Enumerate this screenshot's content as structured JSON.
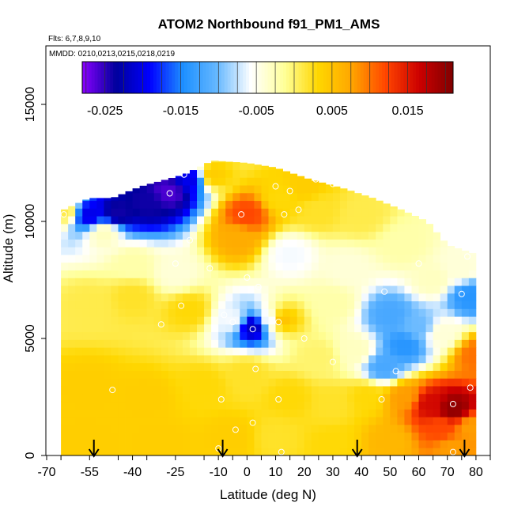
{
  "chart_data": {
    "type": "heatmap",
    "title": "ATOM2 Northbound f91_PM1_AMS",
    "flights_note": "Flts: 6,7,8,9,10",
    "dates_note": "MMDD: 0210,0213,0215,0218,0219",
    "xlabel": "Latitude (deg N)",
    "ylabel": "Altitude (m)",
    "xlim": [
      -70,
      85
    ],
    "ylim": [
      0,
      17500
    ],
    "x_ticks": [
      -70,
      -55,
      -40,
      -25,
      -10,
      0,
      10,
      20,
      30,
      40,
      50,
      60,
      70,
      80
    ],
    "y_ticks": [
      0,
      5000,
      10000,
      15000
    ],
    "colorbar": {
      "range": [
        -0.028,
        0.021
      ],
      "ticks": [
        -0.025,
        -0.015,
        -0.005,
        0.005,
        0.015
      ],
      "tick_labels": [
        "-0.025",
        "-0.015",
        "-0.005",
        "0.005",
        "0.015"
      ],
      "colors": [
        "#8a00ff",
        "#00009c",
        "#0000ff",
        "#1e90ff",
        "#66b8ff",
        "#ffffff",
        "#ffff99",
        "#ffd700",
        "#ffa500",
        "#ff4500",
        "#cc0000",
        "#800000"
      ]
    },
    "arrows_latitude": [
      -53.5,
      -8.5,
      38.5,
      76
    ],
    "column_tops_m": [
      [
        -64,
        10500
      ],
      [
        -55,
        11000
      ],
      [
        -47,
        11000
      ],
      [
        -37,
        11500
      ],
      [
        -22,
        12000
      ],
      [
        -12,
        12600
      ],
      [
        0,
        12500
      ],
      [
        10,
        12300
      ],
      [
        22,
        11800
      ],
      [
        34,
        11400
      ],
      [
        44,
        11000
      ],
      [
        54,
        10500
      ],
      [
        63,
        10000
      ],
      [
        70,
        9000
      ],
      [
        80,
        8600
      ]
    ],
    "field": [
      {
        "lat": -64,
        "alt": 10500,
        "value": 0.001
      },
      {
        "lat": -55,
        "alt": 10300,
        "value": -0.02
      },
      {
        "lat": -45,
        "alt": 10400,
        "value": -0.024
      },
      {
        "lat": -35,
        "alt": 10800,
        "value": -0.024
      },
      {
        "lat": -27,
        "alt": 11300,
        "value": -0.026
      },
      {
        "lat": -20,
        "alt": 11800,
        "value": -0.02
      },
      {
        "lat": -12,
        "alt": 12000,
        "value": 0.004
      },
      {
        "lat": 0,
        "alt": 10300,
        "value": 0.012
      },
      {
        "lat": -3,
        "alt": 9300,
        "value": 0.007
      },
      {
        "lat": 12,
        "alt": 11000,
        "value": 0.003
      },
      {
        "lat": 20,
        "alt": 11500,
        "value": 0.004
      },
      {
        "lat": 25,
        "alt": 10500,
        "value": 0.002
      },
      {
        "lat": 40,
        "alt": 10300,
        "value": 0.001
      },
      {
        "lat": -50,
        "alt": 9500,
        "value": -0.003
      },
      {
        "lat": -40,
        "alt": 8200,
        "value": -0.002
      },
      {
        "lat": -25,
        "alt": 7800,
        "value": -0.004
      },
      {
        "lat": 15,
        "alt": 8600,
        "value": -0.006
      },
      {
        "lat": 35,
        "alt": 8000,
        "value": -0.004
      },
      {
        "lat": 55,
        "alt": 9000,
        "value": -0.002
      },
      {
        "lat": 65,
        "alt": 7500,
        "value": -0.003
      },
      {
        "lat": 75,
        "alt": 8000,
        "value": -0.004
      },
      {
        "lat": 78,
        "alt": 6800,
        "value": -0.014
      },
      {
        "lat": -55,
        "alt": 6500,
        "value": 0.001
      },
      {
        "lat": -40,
        "alt": 6800,
        "value": 0.002
      },
      {
        "lat": -20,
        "alt": 6200,
        "value": 0.003
      },
      {
        "lat": 2,
        "alt": 5500,
        "value": -0.022
      },
      {
        "lat": -5,
        "alt": 5800,
        "value": -0.006
      },
      {
        "lat": 8,
        "alt": 5800,
        "value": -0.006
      },
      {
        "lat": 12,
        "alt": 5800,
        "value": 0.005
      },
      {
        "lat": 30,
        "alt": 6500,
        "value": -0.002
      },
      {
        "lat": 50,
        "alt": 6000,
        "value": -0.012
      },
      {
        "lat": 55,
        "alt": 4700,
        "value": -0.014
      },
      {
        "lat": 48,
        "alt": 3800,
        "value": -0.012
      },
      {
        "lat": 60,
        "alt": 5500,
        "value": -0.01
      },
      {
        "lat": 68,
        "alt": 5200,
        "value": -0.004
      },
      {
        "lat": 38,
        "alt": 4500,
        "value": -0.003
      },
      {
        "lat": 25,
        "alt": 4200,
        "value": 0.0
      },
      {
        "lat": 80,
        "alt": 4300,
        "value": 0.01
      },
      {
        "lat": -55,
        "alt": 3000,
        "value": 0.004
      },
      {
        "lat": -35,
        "alt": 2500,
        "value": 0.004
      },
      {
        "lat": -15,
        "alt": 3000,
        "value": 0.003
      },
      {
        "lat": 0,
        "alt": 3500,
        "value": 0.002
      },
      {
        "lat": 15,
        "alt": 2500,
        "value": 0.003
      },
      {
        "lat": 30,
        "alt": 2200,
        "value": 0.002
      },
      {
        "lat": 42,
        "alt": 2500,
        "value": 0.003
      },
      {
        "lat": 55,
        "alt": 2500,
        "value": 0.008
      },
      {
        "lat": 64,
        "alt": 2200,
        "value": 0.016
      },
      {
        "lat": 72,
        "alt": 2000,
        "value": 0.02
      },
      {
        "lat": 68,
        "alt": 1200,
        "value": 0.012
      },
      {
        "lat": 78,
        "alt": 1200,
        "value": 0.008
      },
      {
        "lat": -55,
        "alt": 500,
        "value": 0.004
      },
      {
        "lat": -30,
        "alt": 500,
        "value": 0.004
      },
      {
        "lat": -5,
        "alt": 800,
        "value": 0.004
      },
      {
        "lat": 10,
        "alt": 800,
        "value": 0.002
      },
      {
        "lat": 30,
        "alt": 500,
        "value": 0.003
      },
      {
        "lat": 50,
        "alt": 600,
        "value": 0.006
      },
      {
        "lat": 72,
        "alt": 300,
        "value": 0.008
      }
    ],
    "sample_points": [
      [
        -64,
        10300
      ],
      [
        -27,
        11200
      ],
      [
        -22,
        12000
      ],
      [
        -2,
        10300
      ],
      [
        10,
        11500
      ],
      [
        15,
        11300
      ],
      [
        24,
        11800
      ],
      [
        30,
        11600
      ],
      [
        18,
        10500
      ],
      [
        13,
        10300
      ],
      [
        -20,
        9200
      ],
      [
        -25,
        8200
      ],
      [
        -13,
        8000
      ],
      [
        0,
        7600
      ],
      [
        4,
        7200
      ],
      [
        60,
        8200
      ],
      [
        77,
        8500
      ],
      [
        75,
        6900
      ],
      [
        48,
        7000
      ],
      [
        -30,
        5600
      ],
      [
        -23,
        6400
      ],
      [
        -8,
        6000
      ],
      [
        -5,
        5700
      ],
      [
        2,
        5400
      ],
      [
        11,
        5700
      ],
      [
        30,
        4000
      ],
      [
        20,
        5000
      ],
      [
        52,
        3600
      ],
      [
        3,
        3700
      ],
      [
        -47,
        2800
      ],
      [
        -9,
        2400
      ],
      [
        -4,
        1100
      ],
      [
        2,
        1400
      ],
      [
        11,
        2400
      ],
      [
        47,
        2400
      ],
      [
        72,
        2200
      ],
      [
        78,
        2900
      ],
      [
        -10,
        300
      ],
      [
        12,
        150
      ],
      [
        72,
        150
      ]
    ]
  }
}
